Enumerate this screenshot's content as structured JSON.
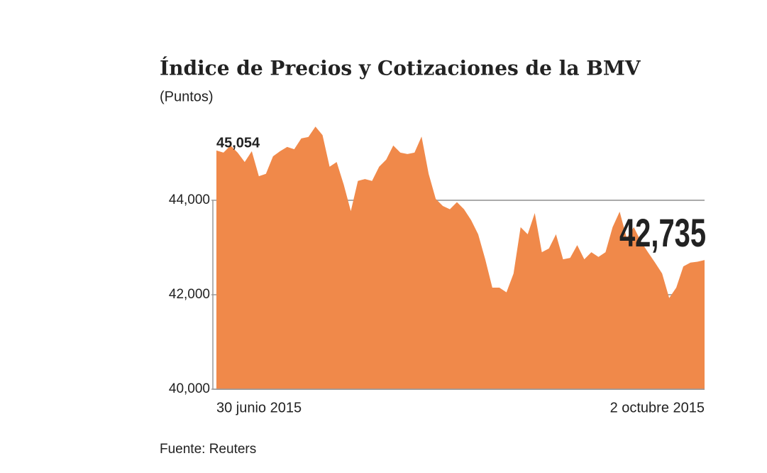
{
  "chart_data": {
    "type": "area",
    "title": "Índice de Precios y Cotizaciones de la BMV",
    "subtitle": "(Puntos)",
    "source": "Fuente: Reuters",
    "color": "#f0894a",
    "grid": true,
    "ylim": [
      40000,
      46000
    ],
    "yticks": [
      {
        "value": 40000,
        "label": "40,000"
      },
      {
        "value": 42000,
        "label": "42,000"
      },
      {
        "value": 44000,
        "label": "44,000"
      }
    ],
    "categories": [
      "30 junio 2015",
      null,
      null,
      null,
      null,
      null,
      null,
      null,
      null,
      null,
      null,
      null,
      null,
      null,
      null,
      null,
      null,
      null,
      null,
      null,
      null,
      null,
      null,
      null,
      null,
      null,
      null,
      null,
      null,
      null,
      null,
      null,
      null,
      null,
      null,
      null,
      null,
      null,
      null,
      null,
      null,
      null,
      null,
      null,
      null,
      null,
      null,
      null,
      null,
      null,
      null,
      null,
      null,
      null,
      null,
      null,
      null,
      null,
      null,
      null,
      null,
      null,
      null,
      null,
      null,
      null,
      null,
      null,
      null,
      "2 octubre 2015"
    ],
    "values": [
      45054,
      45010,
      45160,
      45010,
      44810,
      45040,
      44510,
      44560,
      44930,
      45040,
      45130,
      45080,
      45310,
      45340,
      45560,
      45380,
      44710,
      44810,
      44330,
      43770,
      44410,
      44450,
      44410,
      44710,
      44860,
      45160,
      45010,
      44980,
      45010,
      45350,
      44560,
      44030,
      43880,
      43810,
      43960,
      43810,
      43580,
      43280,
      42750,
      42150,
      42150,
      42050,
      42450,
      43430,
      43280,
      43730,
      42900,
      42980,
      43280,
      42750,
      42780,
      43050,
      42750,
      42900,
      42800,
      42900,
      43430,
      43760,
      43200,
      43430,
      43130,
      42900,
      42680,
      42450,
      41930,
      42150,
      42600,
      42680,
      42700,
      42735
    ],
    "value_labels": [
      "45,054",
      null,
      null,
      null,
      null,
      null,
      null,
      null,
      null,
      null,
      null,
      null,
      null,
      null,
      null,
      null,
      null,
      null,
      null,
      null,
      null,
      null,
      null,
      null,
      null,
      null,
      null,
      null,
      null,
      null,
      null,
      null,
      null,
      null,
      null,
      null,
      null,
      null,
      null,
      null,
      null,
      null,
      null,
      null,
      null,
      null,
      null,
      null,
      null,
      null,
      null,
      null,
      null,
      null,
      null,
      null,
      null,
      null,
      null,
      null,
      null,
      null,
      null,
      null,
      null,
      null,
      null,
      null,
      null,
      "42,735"
    ]
  }
}
